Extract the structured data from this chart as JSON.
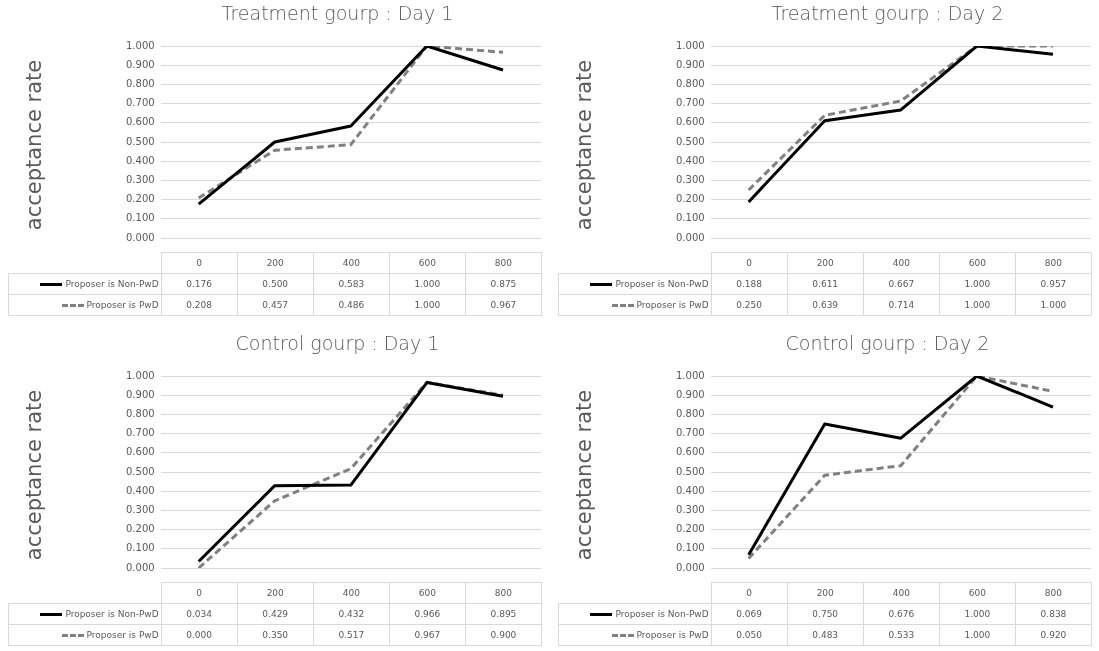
{
  "chart_data": [
    {
      "type": "line",
      "title": "Treatment gourp : Day 1",
      "ylabel": "acceptance rate",
      "categories": [
        "0",
        "200",
        "400",
        "600",
        "800"
      ],
      "ylim": [
        0,
        1
      ],
      "yticks": [
        {
          "value": 0,
          "label": "0.000"
        },
        {
          "value": 0.1,
          "label": "0.100"
        },
        {
          "value": 0.2,
          "label": "0.200"
        },
        {
          "value": 0.3,
          "label": "0.300"
        },
        {
          "value": 0.4,
          "label": "0.400"
        },
        {
          "value": 0.5,
          "label": "0.500"
        },
        {
          "value": 0.6,
          "label": "0.600"
        },
        {
          "value": 0.7,
          "label": "0.700"
        },
        {
          "value": 0.8,
          "label": "0.800"
        },
        {
          "value": 0.9,
          "label": "0.900"
        },
        {
          "value": 1,
          "label": "1.000"
        }
      ],
      "grid": "y",
      "legend": "bottom",
      "marker": "none",
      "series": [
        {
          "name": "Proposer is Non-PwD",
          "color": "#000000",
          "line_style": "solid",
          "values": [
            0.176,
            0.5,
            0.583,
            1,
            0.875
          ],
          "value_labels": [
            "0.176",
            "0.500",
            "0.583",
            "1.000",
            "0.875"
          ]
        },
        {
          "name": "Proposer is PwD",
          "color": "#808080",
          "line_style": "dashed",
          "values": [
            0.208,
            0.457,
            0.486,
            1,
            0.967
          ],
          "value_labels": [
            "0.208",
            "0.457",
            "0.486",
            "1.000",
            "0.967"
          ]
        }
      ]
    },
    {
      "type": "line",
      "title": "Treatment gourp : Day 2",
      "ylabel": "acceptance rate",
      "categories": [
        "0",
        "200",
        "400",
        "600",
        "800"
      ],
      "ylim": [
        0,
        1
      ],
      "yticks": [
        {
          "value": 0,
          "label": "0.000"
        },
        {
          "value": 0.1,
          "label": "0.100"
        },
        {
          "value": 0.2,
          "label": "0.200"
        },
        {
          "value": 0.3,
          "label": "0.300"
        },
        {
          "value": 0.4,
          "label": "0.400"
        },
        {
          "value": 0.5,
          "label": "0.500"
        },
        {
          "value": 0.6,
          "label": "0.600"
        },
        {
          "value": 0.7,
          "label": "0.700"
        },
        {
          "value": 0.8,
          "label": "0.800"
        },
        {
          "value": 0.9,
          "label": "0.900"
        },
        {
          "value": 1,
          "label": "1.000"
        }
      ],
      "grid": "y",
      "legend": "bottom",
      "marker": "none",
      "series": [
        {
          "name": "Proposer is Non-PwD",
          "color": "#000000",
          "line_style": "solid",
          "values": [
            0.188,
            0.611,
            0.667,
            1,
            0.957
          ],
          "value_labels": [
            "0.188",
            "0.611",
            "0.667",
            "1.000",
            "0.957"
          ]
        },
        {
          "name": "Proposer is PwD",
          "color": "#808080",
          "line_style": "dashed",
          "values": [
            0.25,
            0.639,
            0.714,
            1,
            1
          ],
          "value_labels": [
            "0.250",
            "0.639",
            "0.714",
            "1.000",
            "1.000"
          ]
        }
      ]
    },
    {
      "type": "line",
      "title": "Control gourp : Day 1",
      "ylabel": "acceptance rate",
      "categories": [
        "0",
        "200",
        "400",
        "600",
        "800"
      ],
      "ylim": [
        0,
        1
      ],
      "yticks": [
        {
          "value": 0,
          "label": "0.000"
        },
        {
          "value": 0.1,
          "label": "0.100"
        },
        {
          "value": 0.2,
          "label": "0.200"
        },
        {
          "value": 0.3,
          "label": "0.300"
        },
        {
          "value": 0.4,
          "label": "0.400"
        },
        {
          "value": 0.5,
          "label": "0.500"
        },
        {
          "value": 0.6,
          "label": "0.600"
        },
        {
          "value": 0.7,
          "label": "0.700"
        },
        {
          "value": 0.8,
          "label": "0.800"
        },
        {
          "value": 0.9,
          "label": "0.900"
        },
        {
          "value": 1,
          "label": "1.000"
        }
      ],
      "grid": "y",
      "legend": "bottom",
      "marker": "none",
      "series": [
        {
          "name": "Proposer is Non-PwD",
          "color": "#000000",
          "line_style": "solid",
          "values": [
            0.034,
            0.429,
            0.432,
            0.966,
            0.895
          ],
          "value_labels": [
            "0.034",
            "0.429",
            "0.432",
            "0.966",
            "0.895"
          ]
        },
        {
          "name": "Proposer is PwD",
          "color": "#808080",
          "line_style": "dashed",
          "values": [
            0,
            0.35,
            0.517,
            0.967,
            0.9
          ],
          "value_labels": [
            "0.000",
            "0.350",
            "0.517",
            "0.967",
            "0.900"
          ]
        }
      ]
    },
    {
      "type": "line",
      "title": "Control gourp : Day 2",
      "ylabel": "acceptance rate",
      "categories": [
        "0",
        "200",
        "400",
        "600",
        "800"
      ],
      "ylim": [
        0,
        1
      ],
      "yticks": [
        {
          "value": 0,
          "label": "0.000"
        },
        {
          "value": 0.1,
          "label": "0.100"
        },
        {
          "value": 0.2,
          "label": "0.200"
        },
        {
          "value": 0.3,
          "label": "0.300"
        },
        {
          "value": 0.4,
          "label": "0.400"
        },
        {
          "value": 0.5,
          "label": "0.500"
        },
        {
          "value": 0.6,
          "label": "0.600"
        },
        {
          "value": 0.7,
          "label": "0.700"
        },
        {
          "value": 0.8,
          "label": "0.800"
        },
        {
          "value": 0.9,
          "label": "0.900"
        },
        {
          "value": 1,
          "label": "1.000"
        }
      ],
      "grid": "y",
      "legend": "bottom",
      "marker": "none",
      "series": [
        {
          "name": "Proposer is Non-PwD",
          "color": "#000000",
          "line_style": "solid",
          "values": [
            0.069,
            0.75,
            0.676,
            1,
            0.838
          ],
          "value_labels": [
            "0.069",
            "0.750",
            "0.676",
            "1.000",
            "0.838"
          ]
        },
        {
          "name": "Proposer is PwD",
          "color": "#808080",
          "line_style": "dashed",
          "values": [
            0.05,
            0.483,
            0.533,
            1,
            0.92
          ],
          "value_labels": [
            "0.050",
            "0.483",
            "0.533",
            "1.000",
            "0.920"
          ]
        }
      ]
    }
  ]
}
